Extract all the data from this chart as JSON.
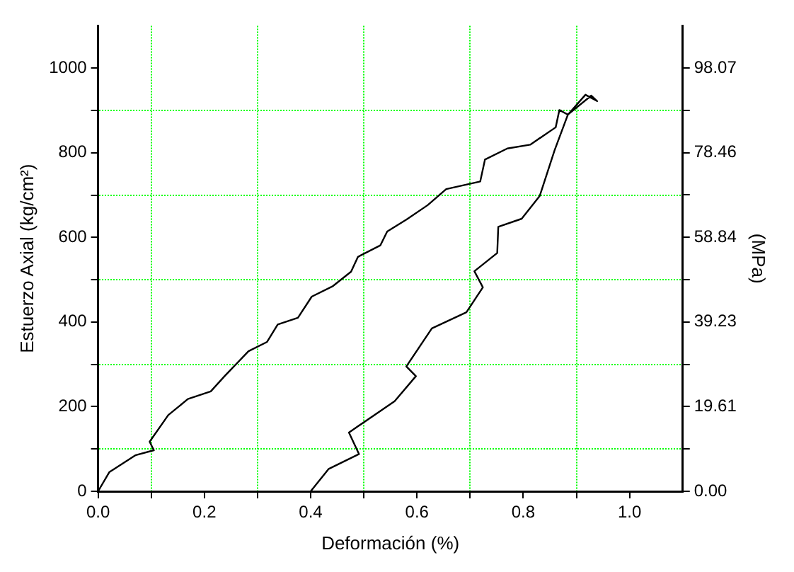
{
  "chart_data": {
    "type": "line",
    "xlabel": "Deformación (%)",
    "ylabel": "Estuerzo Axial (kg/cm²)",
    "y2label": "(MPa)",
    "series": [
      {
        "color": "#000000",
        "x": [
          0,
          0.021,
          0.07,
          0.105,
          0.097,
          0.132,
          0.169,
          0.212,
          0.238,
          0.283,
          0.318,
          0.338,
          0.376,
          0.402,
          0.442,
          0.476,
          0.489,
          0.531,
          0.544,
          0.58,
          0.62,
          0.655,
          0.719,
          0.728,
          0.77,
          0.813,
          0.861,
          0.868,
          0.884,
          0.917,
          0.939,
          0.928,
          0.884,
          0.859,
          0.831,
          0.797,
          0.753,
          0.751,
          0.708,
          0.724,
          0.693,
          0.628,
          0.58,
          0.598,
          0.558,
          0.472,
          0.491,
          0.434,
          0.4
        ],
        "values": [
          0,
          45,
          85,
          97,
          117,
          180,
          218,
          236,
          272,
          331,
          353,
          394,
          410,
          460,
          485,
          519,
          554,
          581,
          614,
          642,
          676,
          714,
          732,
          784,
          810,
          819,
          860,
          901,
          890,
          937,
          922,
          935,
          890,
          806,
          698,
          644,
          625,
          563,
          520,
          482,
          423,
          385,
          295,
          272,
          213,
          139,
          88,
          53,
          0
        ]
      }
    ],
    "xlim": [
      0,
      1.1
    ],
    "xticks": [
      {
        "value": 0,
        "label": "0.0"
      },
      {
        "value": 0.1,
        "label": null
      },
      {
        "value": 0.2,
        "label": "0.2"
      },
      {
        "value": 0.3,
        "label": null
      },
      {
        "value": 0.4,
        "label": "0.4"
      },
      {
        "value": 0.5,
        "label": null
      },
      {
        "value": 0.6,
        "label": "0.6"
      },
      {
        "value": 0.7,
        "label": null
      },
      {
        "value": 0.8,
        "label": "0.8"
      },
      {
        "value": 0.9,
        "label": null
      },
      {
        "value": 1,
        "label": "1.0"
      }
    ],
    "ylim": [
      0,
      1100
    ],
    "yticks": [
      0,
      {
        "value": 100,
        "label": null
      },
      200,
      {
        "value": 300,
        "label": null
      },
      400,
      {
        "value": 500,
        "label": null
      },
      600,
      {
        "value": 700,
        "label": null
      },
      800,
      {
        "value": 900,
        "label": null
      },
      1000
    ],
    "y2lim": [
      0,
      107.87
    ],
    "y2ticks": [
      {
        "value": 0,
        "label": "0.00"
      },
      {
        "value": 9.81,
        "label": null
      },
      19.61,
      {
        "value": 29.42,
        "label": null
      },
      39.23,
      {
        "value": 49.03,
        "label": null
      },
      58.84,
      {
        "value": 68.65,
        "label": null
      },
      78.46,
      {
        "value": 88.26,
        "label": null
      },
      98.07
    ],
    "grid": true,
    "marker": "none",
    "line_style": "solid"
  }
}
